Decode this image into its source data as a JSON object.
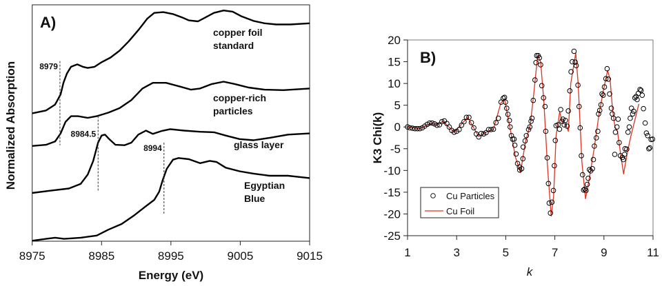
{
  "chart_data": [
    {
      "type": "line",
      "panel_label": "A)",
      "xlabel": "Energy (eV)",
      "ylabel": "Normalized Absorption",
      "xlim": [
        8975,
        9015
      ],
      "xticks": [
        "8975",
        "8985",
        "8995",
        "9005",
        "9015"
      ],
      "ylim": [
        0,
        10
      ],
      "y_ticks_shown": false,
      "grid": false,
      "line_color": "#000000",
      "series": [
        {
          "name": "copper foil standard",
          "label_lines": [
            "copper foil",
            "standard"
          ],
          "x": [
            8975.0,
            8977.0,
            8978.3,
            8979.1,
            8979.5,
            8980.0,
            8980.6,
            8981.5,
            8982.3,
            8983.0,
            8984.0,
            8985.0,
            8986.3,
            8987.6,
            8988.9,
            8990.3,
            8991.6,
            8992.6,
            8993.9,
            8995.3,
            8996.6,
            8997.6,
            8998.9,
            9000.0,
            9001.2,
            9002.6,
            9003.9,
            9005.2,
            9006.9,
            9008.5,
            9010.2,
            9012.2,
            9015.0
          ],
          "y": [
            5.41,
            5.53,
            5.78,
            6.21,
            6.7,
            7.09,
            7.38,
            7.48,
            7.38,
            7.33,
            7.38,
            7.57,
            7.77,
            8.06,
            8.45,
            8.93,
            9.42,
            9.66,
            9.69,
            9.61,
            9.47,
            9.34,
            9.3,
            9.47,
            9.66,
            9.76,
            9.71,
            9.51,
            9.32,
            9.22,
            9.17,
            9.17,
            9.22
          ]
        },
        {
          "name": "copper-rich particles",
          "label_lines": [
            "copper-rich",
            "particles"
          ],
          "x": [
            8975.0,
            8977.0,
            8978.3,
            8979.1,
            8979.8,
            8980.6,
            8981.6,
            8983.0,
            8984.3,
            8986.0,
            8987.6,
            8989.3,
            8990.9,
            8992.4,
            8994.3,
            8996.2,
            8997.9,
            8999.2,
            9000.9,
            9002.6,
            9004.2,
            9006.2,
            9008.5,
            9011.2,
            9015.0
          ],
          "y": [
            4.03,
            4.08,
            4.22,
            4.56,
            5.05,
            5.29,
            5.29,
            5.22,
            5.29,
            5.44,
            5.63,
            5.97,
            6.46,
            6.7,
            6.7,
            6.55,
            6.41,
            6.46,
            6.65,
            6.75,
            6.65,
            6.5,
            6.41,
            6.39,
            6.46
          ]
        },
        {
          "name": "glass layer",
          "label_lines": [
            "glass layer"
          ],
          "x": [
            8975.0,
            8977.7,
            8980.3,
            8982.0,
            8983.0,
            8983.8,
            8984.5,
            8985.0,
            8985.5,
            8986.1,
            8987.0,
            8988.3,
            8989.3,
            8990.3,
            8991.4,
            8992.4,
            8993.6,
            8994.9,
            8996.9,
            8999.2,
            9001.2,
            9002.9,
            9004.9,
            9006.9,
            9009.2,
            9011.9,
            9015.0
          ],
          "y": [
            2.04,
            2.14,
            2.23,
            2.43,
            2.82,
            3.4,
            4.17,
            4.47,
            4.51,
            4.32,
            4.08,
            4.06,
            4.17,
            4.51,
            4.68,
            4.54,
            4.66,
            4.74,
            4.68,
            4.63,
            4.61,
            4.47,
            4.32,
            4.27,
            4.37,
            4.51,
            4.56
          ]
        },
        {
          "name": "Egyptian Blue",
          "label_lines": [
            "Egyptian",
            "Blue"
          ],
          "x": [
            8975.0,
            8977.0,
            8978.3,
            8979.6,
            8982.0,
            8984.3,
            8986.0,
            8987.9,
            8989.6,
            8991.3,
            8992.6,
            8993.3,
            8993.8,
            8994.4,
            8995.3,
            8996.1,
            8997.6,
            8999.2,
            9000.6,
            9001.6,
            9002.9,
            9004.9,
            9006.9,
            9009.2,
            9011.9,
            9015.0
          ],
          "y": [
            0.02,
            0.1,
            0.15,
            0.1,
            0.15,
            0.24,
            0.49,
            0.73,
            1.07,
            1.46,
            1.75,
            2.09,
            2.57,
            3.06,
            3.45,
            3.52,
            3.47,
            3.3,
            3.4,
            3.35,
            3.11,
            2.96,
            2.86,
            2.77,
            2.77,
            2.67
          ]
        }
      ],
      "annotations": [
        {
          "text": "8979",
          "x": 8979,
          "y_range": [
            4.06,
            7.62
          ]
        },
        {
          "text": "8984.5",
          "x": 8984.5,
          "y_range": [
            2.09,
            5.29
          ]
        },
        {
          "text": "8994",
          "x": 8994,
          "y_range": [
            1.12,
            4.17
          ]
        }
      ]
    },
    {
      "type": "scatter",
      "panel_label": "B)",
      "xlabel": "k",
      "ylabel": "K3 Chi(k)",
      "xlim": [
        1,
        11
      ],
      "ylim": [
        -25,
        20
      ],
      "xticks": [
        "1",
        "3",
        "5",
        "7",
        "9",
        "11"
      ],
      "yticks": [
        "20",
        "15",
        "10",
        "5",
        "0",
        "-5",
        "-10",
        "-15",
        "-20",
        "-25"
      ],
      "grid": false,
      "legend_position": "bottom-left",
      "series": [
        {
          "name": "Cu Particles",
          "marker": "open-circle",
          "color": "#000000",
          "x": [
            1.0,
            1.1,
            1.2,
            1.3,
            1.4,
            1.5,
            1.6,
            1.7,
            1.8,
            1.9,
            2.0,
            2.1,
            2.2,
            2.3,
            2.4,
            2.5,
            2.6,
            2.7,
            2.8,
            2.9,
            3.0,
            3.1,
            3.2,
            3.3,
            3.4,
            3.5,
            3.6,
            3.7,
            3.8,
            3.9,
            4.0,
            4.1,
            4.2,
            4.3,
            4.4,
            4.5,
            4.6,
            4.7,
            4.81,
            4.9,
            4.95,
            4.99,
            5.04,
            5.09,
            5.15,
            5.18,
            5.23,
            5.28,
            5.34,
            5.37,
            5.42,
            5.48,
            5.56,
            5.57,
            5.65,
            5.7,
            5.71,
            5.79,
            5.84,
            5.93,
            5.98,
            6.03,
            6.07,
            6.12,
            6.19,
            6.23,
            6.26,
            6.32,
            6.37,
            6.42,
            6.47,
            6.54,
            6.6,
            6.63,
            6.69,
            6.74,
            6.77,
            6.82,
            6.88,
            6.94,
            6.98,
            7.02,
            7.05,
            7.13,
            7.19,
            7.24,
            7.29,
            7.33,
            7.38,
            7.43,
            7.5,
            7.55,
            7.61,
            7.66,
            7.71,
            7.78,
            7.83,
            7.87,
            7.94,
            7.99,
            8.03,
            8.08,
            8.13,
            8.17,
            8.22,
            8.27,
            8.32,
            8.36,
            8.41,
            8.46,
            8.53,
            8.57,
            8.61,
            8.69,
            8.75,
            8.78,
            8.83,
            8.88,
            8.92,
            8.97,
            9.02,
            9.08,
            9.13,
            9.18,
            9.23,
            9.3,
            9.34,
            9.39,
            9.44,
            9.47,
            9.53,
            9.58,
            9.62,
            9.67,
            9.75,
            9.79,
            9.84,
            9.86,
            9.93,
            9.98,
            10.03,
            10.07,
            10.12,
            10.17,
            10.21,
            10.26,
            10.31,
            10.35,
            10.4,
            10.47,
            10.51,
            10.56,
            10.61,
            10.68,
            10.73,
            10.78,
            10.83,
            10.87,
            10.92,
            10.98
          ],
          "y": [
            0,
            -0.2,
            -0.3,
            -0.4,
            -0.4,
            -0.4,
            -0.2,
            0.2,
            0.6,
            0.9,
            0.9,
            0.7,
            0.4,
            0.5,
            1.2,
            1.4,
            0.8,
            0,
            -0.8,
            -1.2,
            -1.0,
            -0.6,
            0.4,
            1.2,
            2.2,
            2.2,
            1.0,
            -0.2,
            -1.6,
            -2.3,
            -1.5,
            -1.6,
            -1.3,
            -0.6,
            -0.6,
            -0.5,
            1.0,
            2.0,
            5.7,
            6.6,
            6.8,
            5.7,
            4.3,
            2.9,
            1.5,
            0,
            -2,
            -2.8,
            -2.8,
            -4.2,
            -6.2,
            -8.4,
            -9.2,
            -9.9,
            -9.6,
            -7.3,
            -4.6,
            -3.2,
            -2.0,
            -0.6,
            0,
            1.3,
            2,
            6.1,
            10.8,
            14.8,
            16.4,
            16.4,
            15.9,
            14.3,
            9.5,
            6.7,
            4.7,
            -1,
            -7.1,
            -13,
            -17.5,
            -19.8,
            -17.3,
            -14.6,
            -8.9,
            -3.1,
            0.3,
            0.5,
            -0.5,
            4.0,
            1.3,
            1.8,
            0.5,
            1.5,
            0.2,
            3.7,
            8.3,
            12.7,
            15,
            17.4,
            14.9,
            14.1,
            9.6,
            4.7,
            -0.2,
            -6.6,
            -11,
            -14.5,
            -14.3,
            -14.6,
            -13.2,
            -11.8,
            -9.8,
            -10.1,
            -9.6,
            -7.5,
            -4.4,
            -2.5,
            -1.0,
            3.0,
            3.8,
            5.1,
            7.6,
            7.3,
            9.2,
            11.1,
            13.4,
            11.0,
            7.6,
            4.3,
            3.0,
            2.0,
            -6.3,
            -1.2,
            0,
            1.8,
            -3.6,
            -6.6,
            -7.0,
            -7.5,
            -6.3,
            -5.0,
            -5.1,
            -1.2,
            0,
            2.0,
            4.3,
            3.0,
            3.6,
            6.7,
            7.0,
            6.3,
            7.7,
            8.6,
            8.4,
            7.3,
            4.2,
            0.9,
            -1.4,
            -2.0,
            -5.0,
            -4.8,
            -2.9,
            -2.8
          ]
        },
        {
          "name": "Cu Foil",
          "marker": "line",
          "color": "#e0301e",
          "x": [
            1.0,
            1.5,
            2.0,
            2.2,
            2.45,
            2.9,
            3.45,
            3.9,
            4.2,
            4.5,
            4.8,
            4.95,
            5.2,
            5.4,
            5.6,
            5.8,
            6.0,
            6.15,
            6.3,
            6.42,
            6.55,
            6.7,
            6.85,
            6.95,
            7.05,
            7.2,
            7.3,
            7.45,
            7.55,
            7.65,
            7.85,
            7.95,
            8.1,
            8.25,
            8.4,
            8.6,
            8.8,
            9.0,
            9.15,
            9.25,
            9.35,
            9.45,
            9.55,
            9.65,
            9.8,
            9.95,
            10.1,
            10.3,
            10.42
          ],
          "y": [
            0,
            -0.4,
            0.9,
            0.4,
            1.3,
            -1.2,
            2.2,
            -2.2,
            -1.2,
            -0.5,
            5.5,
            6.5,
            -1,
            -7,
            -10.5,
            -3.5,
            0.5,
            8,
            16.5,
            15,
            6,
            -9,
            -20.5,
            -16,
            -2,
            3.5,
            1,
            0.5,
            -1,
            10,
            17,
            10,
            -8,
            -16.5,
            -12,
            -5,
            3,
            9,
            13,
            11,
            4,
            0,
            -1,
            -5,
            -10.8,
            -6,
            -2,
            2.5,
            5.3
          ]
        }
      ]
    }
  ]
}
